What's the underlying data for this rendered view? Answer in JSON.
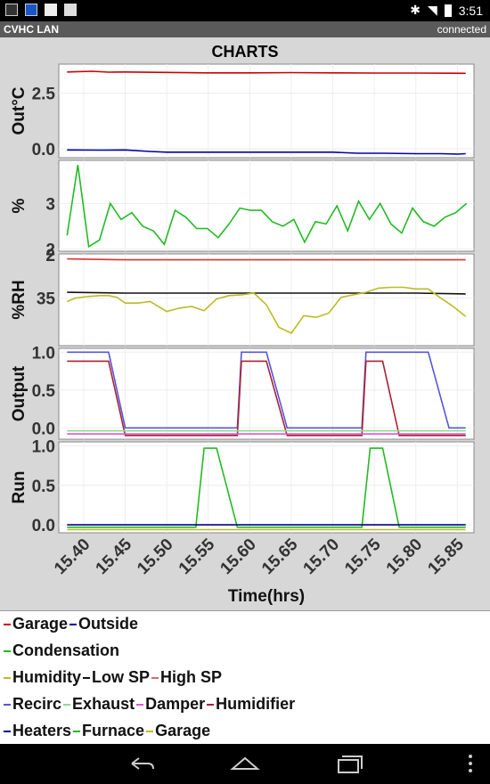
{
  "status_bar": {
    "time": "3:51",
    "left_icons": [
      "picture-icon",
      "app-icon",
      "gmail-icon",
      "briefcase-icon"
    ],
    "right_icons": [
      "bluetooth-icon",
      "wifi-icon",
      "battery-icon"
    ]
  },
  "app_bar": {
    "title": "CVHC LAN",
    "status": "connected"
  },
  "charts_title": "CHARTS",
  "chart_data": {
    "type": "line",
    "xlabel": "Time(hrs)",
    "xlim": [
      15.37,
      15.87
    ],
    "xticks": [
      15.4,
      15.45,
      15.5,
      15.55,
      15.6,
      15.65,
      15.7,
      15.75,
      15.8,
      15.85
    ],
    "xtick_labels": [
      "15.40",
      "15.45",
      "15.50",
      "15.55",
      "15.60",
      "15.65",
      "15.70",
      "15.75",
      "15.80",
      "15.85"
    ],
    "panels": [
      {
        "ylabel": "Out°C",
        "ylim": [
          -0.4,
          3.8
        ],
        "yticks": [
          0.0,
          2.5
        ],
        "ytick_labels": [
          "0.0",
          "2.5"
        ],
        "series": [
          {
            "color": "#cc0000",
            "x": [
              15.38,
              15.41,
              15.43,
              15.45,
              15.5,
              15.55,
              15.6,
              15.65,
              15.7,
              15.75,
              15.8,
              15.86
            ],
            "y": [
              3.45,
              3.48,
              3.44,
              3.45,
              3.43,
              3.41,
              3.41,
              3.42,
              3.41,
              3.4,
              3.4,
              3.39
            ]
          },
          {
            "color": "#0000aa",
            "x": [
              15.38,
              15.42,
              15.45,
              15.48,
              15.5,
              15.55,
              15.6,
              15.65,
              15.7,
              15.73,
              15.76,
              15.8,
              15.83,
              15.85,
              15.86
            ],
            "y": [
              -0.05,
              -0.06,
              -0.05,
              -0.12,
              -0.15,
              -0.15,
              -0.15,
              -0.15,
              -0.15,
              -0.2,
              -0.2,
              -0.22,
              -0.22,
              -0.24,
              -0.22
            ]
          }
        ]
      },
      {
        "ylabel": "%",
        "ylim": [
          1.95,
          3.95
        ],
        "yticks": [
          2,
          3
        ],
        "ytick_labels": [
          "2",
          "3"
        ],
        "series": [
          {
            "color": "#22bb22",
            "x": [
              15.38,
              15.393,
              15.406,
              15.419,
              15.432,
              15.445,
              15.458,
              15.471,
              15.484,
              15.497,
              15.51,
              15.523,
              15.536,
              15.549,
              15.562,
              15.575,
              15.588,
              15.601,
              15.614,
              15.627,
              15.64,
              15.653,
              15.666,
              15.679,
              15.692,
              15.705,
              15.718,
              15.731,
              15.744,
              15.757,
              15.77,
              15.783,
              15.796,
              15.809,
              15.822,
              15.835,
              15.848,
              15.861
            ],
            "y": [
              2.3,
              3.85,
              2.05,
              2.2,
              3.0,
              2.65,
              2.8,
              2.5,
              2.4,
              2.1,
              2.85,
              2.7,
              2.45,
              2.45,
              2.25,
              2.55,
              2.9,
              2.85,
              2.85,
              2.6,
              2.5,
              2.65,
              2.15,
              2.6,
              2.55,
              2.95,
              2.4,
              3.05,
              2.65,
              3.0,
              2.55,
              2.35,
              2.9,
              2.6,
              2.5,
              2.7,
              2.8,
              3.0
            ]
          }
        ]
      },
      {
        "ylabel": "%RH",
        "ylim": [
          29.3,
          40.3
        ],
        "yticks": [
          35
        ],
        "ytick_labels": [
          "35"
        ],
        "extra_tick_label": "2",
        "series": [
          {
            "color": "#dd3333",
            "x": [
              15.38,
              15.45,
              15.5,
              15.55,
              15.6,
              15.65,
              15.7,
              15.75,
              15.8,
              15.86
            ],
            "y": [
              39.7,
              39.6,
              39.6,
              39.6,
              39.6,
              39.6,
              39.6,
              39.6,
              39.6,
              39.6
            ]
          },
          {
            "color": "#111111",
            "x": [
              15.38,
              15.45,
              15.5,
              15.55,
              15.6,
              15.65,
              15.7,
              15.75,
              15.8,
              15.86
            ],
            "y": [
              35.7,
              35.6,
              35.6,
              35.6,
              35.6,
              35.6,
              35.6,
              35.6,
              35.6,
              35.5
            ]
          },
          {
            "color": "#bbbb22",
            "x": [
              15.38,
              15.39,
              15.405,
              15.42,
              15.43,
              15.44,
              15.45,
              15.465,
              15.48,
              15.5,
              15.515,
              15.53,
              15.545,
              15.56,
              15.575,
              15.59,
              15.605,
              15.62,
              15.635,
              15.65,
              15.665,
              15.68,
              15.695,
              15.71,
              15.725,
              15.74,
              15.755,
              15.77,
              15.785,
              15.8,
              15.815,
              15.83,
              15.845,
              15.86
            ],
            "y": [
              34.6,
              35.0,
              35.2,
              35.3,
              35.3,
              35.1,
              34.4,
              34.4,
              34.6,
              33.4,
              33.8,
              34.0,
              33.5,
              34.9,
              35.3,
              35.4,
              35.6,
              34.2,
              31.5,
              30.8,
              32.9,
              32.7,
              33.2,
              35.1,
              35.4,
              35.7,
              36.2,
              36.3,
              36.3,
              36.1,
              36.1,
              35.0,
              34.0,
              32.8
            ]
          }
        ]
      },
      {
        "ylabel": "Output",
        "ylim": [
          -0.15,
          1.05
        ],
        "yticks": [
          0.0,
          0.5,
          1.0
        ],
        "ytick_labels": [
          "0.0",
          "0.5",
          "1.0"
        ],
        "series": [
          {
            "color": "#5555dd",
            "x": [
              15.38,
              15.43,
              15.45,
              15.585,
              15.59,
              15.61,
              15.62,
              15.645,
              15.735,
              15.74,
              15.795,
              15.815,
              15.84,
              15.86
            ],
            "y": [
              1.0,
              1.0,
              0.0,
              0.0,
              1.0,
              1.0,
              1.0,
              0.0,
              0.0,
              1.0,
              1.0,
              1.0,
              0.0,
              0.0
            ]
          },
          {
            "color": "#aa2233",
            "x": [
              15.38,
              15.43,
              15.45,
              15.585,
              15.59,
              15.61,
              15.62,
              15.645,
              15.735,
              15.74,
              15.76,
              15.78,
              15.86
            ],
            "y": [
              0.88,
              0.88,
              -0.1,
              -0.1,
              0.88,
              0.88,
              0.88,
              -0.1,
              -0.1,
              0.88,
              0.88,
              -0.1,
              -0.1
            ]
          },
          {
            "color": "#88dd88",
            "x": [
              15.38,
              15.86
            ],
            "y": [
              -0.04,
              -0.04
            ]
          },
          {
            "color": "#dd55dd",
            "x": [
              15.38,
              15.86
            ],
            "y": [
              -0.08,
              -0.08
            ]
          }
        ]
      },
      {
        "ylabel": "Run",
        "ylim": [
          -0.1,
          1.05
        ],
        "yticks": [
          0.0,
          0.5,
          1.0
        ],
        "ytick_labels": [
          "0.0",
          "0.5",
          "1.0"
        ],
        "series": [
          {
            "color": "#22bb22",
            "x": [
              15.38,
              15.535,
              15.545,
              15.56,
              15.585,
              15.735,
              15.745,
              15.76,
              15.78,
              15.86
            ],
            "y": [
              -0.03,
              -0.03,
              0.97,
              0.97,
              -0.03,
              -0.03,
              0.97,
              0.97,
              -0.03,
              -0.03
            ]
          },
          {
            "color": "#000088",
            "x": [
              15.38,
              15.86
            ],
            "y": [
              0.0,
              0.0
            ]
          },
          {
            "color": "#bbbb22",
            "x": [
              15.38,
              15.86
            ],
            "y": [
              -0.06,
              -0.06
            ]
          }
        ]
      }
    ]
  },
  "legend": {
    "rows": [
      [
        {
          "label": "Garage",
          "color": "#cc0000"
        },
        {
          "label": "Outside",
          "color": "#0000aa"
        }
      ],
      [
        {
          "label": "Condensation",
          "color": "#22bb22"
        }
      ],
      [
        {
          "label": "Humidity",
          "color": "#bbbb22"
        },
        {
          "label": "Low SP",
          "color": "#111111"
        },
        {
          "label": "High SP",
          "color": "#dd6677"
        }
      ],
      [
        {
          "label": "Recirc",
          "color": "#5555dd"
        },
        {
          "label": "Exhaust",
          "color": "#88dd88"
        },
        {
          "label": "Damper",
          "color": "#dd55dd"
        },
        {
          "label": "Humidifier",
          "color": "#aa2233"
        }
      ],
      [
        {
          "label": "Heaters",
          "color": "#000088"
        },
        {
          "label": "Furnace",
          "color": "#22bb22"
        },
        {
          "label": "Garage",
          "color": "#bbbb22"
        }
      ]
    ]
  },
  "nav_bar": {
    "buttons": [
      "back-icon",
      "home-icon",
      "recents-icon",
      "overflow-menu-icon"
    ]
  }
}
